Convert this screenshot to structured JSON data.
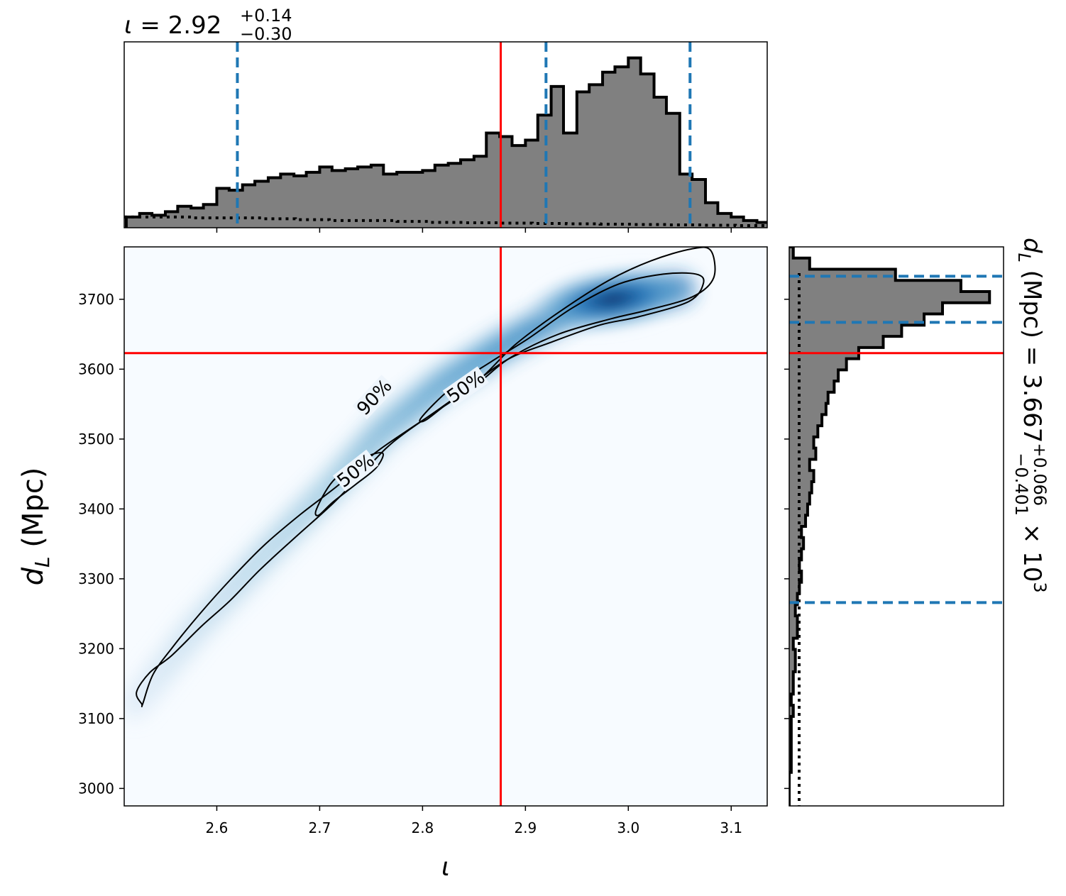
{
  "chart_data": {
    "type": "corner-plot",
    "panels": [
      {
        "name": "iota-marginal",
        "type": "histogram",
        "title": {
          "symbol": "ι",
          "equals": " = ",
          "median": "2.92",
          "plus": "+0.14",
          "minus": "−0.30"
        },
        "xlim": [
          2.51,
          3.135
        ],
        "bin_edges": [
          2.512,
          2.525,
          2.537,
          2.55,
          2.562,
          2.575,
          2.587,
          2.6,
          2.612,
          2.625,
          2.637,
          2.65,
          2.662,
          2.675,
          2.687,
          2.7,
          2.712,
          2.725,
          2.737,
          2.75,
          2.762,
          2.775,
          2.787,
          2.8,
          2.812,
          2.825,
          2.837,
          2.85,
          2.862,
          2.875,
          2.887,
          2.9,
          2.912,
          2.925,
          2.937,
          2.95,
          2.962,
          2.975,
          2.987,
          3.0,
          3.012,
          3.025,
          3.037,
          3.05,
          3.062,
          3.075,
          3.087,
          3.1,
          3.112,
          3.125,
          3.137
        ],
        "densities": [
          0.06,
          0.08,
          0.07,
          0.09,
          0.12,
          0.11,
          0.13,
          0.22,
          0.21,
          0.24,
          0.26,
          0.28,
          0.3,
          0.29,
          0.31,
          0.34,
          0.32,
          0.33,
          0.34,
          0.35,
          0.3,
          0.31,
          0.31,
          0.32,
          0.35,
          0.36,
          0.38,
          0.4,
          0.53,
          0.51,
          0.46,
          0.49,
          0.63,
          0.79,
          0.53,
          0.76,
          0.8,
          0.87,
          0.9,
          0.95,
          0.86,
          0.73,
          0.64,
          0.3,
          0.27,
          0.14,
          0.08,
          0.06,
          0.04,
          0.03
        ],
        "prior_dotted": [
          0.06,
          0.06,
          0.055,
          0.055,
          0.05,
          0.045,
          0.04,
          0.04,
          0.035,
          0.03,
          0.028,
          0.026,
          0.024,
          0.022,
          0.02,
          0.018,
          0.016,
          0.014,
          0.012
        ],
        "credible_lines": [
          2.62,
          2.92,
          3.06
        ],
        "injection": 2.876
      },
      {
        "name": "dL-marginal",
        "type": "histogram-horizontal",
        "label": {
          "name": "d",
          "subscript": "L",
          "unit": " (Mpc) = 3.667",
          "plus": "+0.066",
          "minus": "−0.401",
          "scale": " × 10",
          "exponent": "3"
        },
        "ylim": [
          2975,
          3775
        ],
        "bin_edges": [
          2975,
          2991,
          3007,
          3023,
          3039,
          3055,
          3071,
          3087,
          3103,
          3119,
          3135,
          3151,
          3167,
          3183,
          3199,
          3215,
          3231,
          3247,
          3263,
          3279,
          3295,
          3311,
          3327,
          3343,
          3359,
          3375,
          3391,
          3407,
          3423,
          3439,
          3455,
          3471,
          3487,
          3503,
          3519,
          3535,
          3551,
          3567,
          3583,
          3599,
          3615,
          3631,
          3647,
          3663,
          3679,
          3695,
          3711,
          3727,
          3743,
          3759,
          3775
        ],
        "densities": [
          0.0,
          0.0,
          0.0,
          0.01,
          0.01,
          0.01,
          0.01,
          0.01,
          0.02,
          0.01,
          0.02,
          0.02,
          0.03,
          0.03,
          0.02,
          0.04,
          0.04,
          0.03,
          0.04,
          0.05,
          0.06,
          0.05,
          0.06,
          0.07,
          0.06,
          0.08,
          0.09,
          0.1,
          0.11,
          0.12,
          0.1,
          0.13,
          0.12,
          0.14,
          0.16,
          0.18,
          0.19,
          0.22,
          0.24,
          0.28,
          0.34,
          0.46,
          0.55,
          0.66,
          0.75,
          0.98,
          0.84,
          0.52,
          0.1,
          0.02
        ],
        "credible_lines": [
          3266,
          3667,
          3733
        ],
        "injection": 3623
      },
      {
        "name": "joint-density",
        "type": "heatmap",
        "xlim": [
          2.51,
          3.135
        ],
        "ylim": [
          2975,
          3775
        ],
        "xlabel": "ι",
        "ylabel": {
          "name": "d",
          "subscript": "L",
          "unit": " (Mpc)"
        },
        "xticks": [
          "2.6",
          "2.7",
          "2.8",
          "2.9",
          "3.0",
          "3.1"
        ],
        "xtick_values": [
          2.6,
          2.7,
          2.8,
          2.9,
          3.0,
          3.1
        ],
        "yticks": [
          "3000",
          "3100",
          "3200",
          "3300",
          "3400",
          "3500",
          "3600",
          "3700"
        ],
        "ytick_values": [
          3000,
          3100,
          3200,
          3300,
          3400,
          3500,
          3600,
          3700
        ],
        "ridge": [
          [
            2.52,
            3120
          ],
          [
            2.58,
            3230
          ],
          [
            2.65,
            3340
          ],
          [
            2.71,
            3430
          ],
          [
            2.76,
            3510
          ],
          [
            2.82,
            3580
          ],
          [
            2.88,
            3635
          ],
          [
            2.95,
            3690
          ],
          [
            3.0,
            3705
          ],
          [
            3.05,
            3715
          ]
        ],
        "peak": [
          2.985,
          3700
        ],
        "contour_labels": [
          {
            "text": "90%",
            "x": 2.753,
            "y": 3560,
            "angle": -47
          },
          {
            "text": "50%",
            "x": 2.842,
            "y": 3575,
            "angle": -35
          },
          {
            "text": "50%",
            "x": 2.735,
            "y": 3455,
            "angle": -38
          }
        ],
        "contour_90": [
          [
            2.527,
            3121
          ],
          [
            2.522,
            3138
          ],
          [
            2.535,
            3166
          ],
          [
            2.556,
            3190
          ],
          [
            2.585,
            3232
          ],
          [
            2.613,
            3269
          ],
          [
            2.642,
            3313
          ],
          [
            2.676,
            3359
          ],
          [
            2.713,
            3408
          ],
          [
            2.742,
            3452
          ],
          [
            2.764,
            3486
          ],
          [
            2.784,
            3510
          ],
          [
            2.819,
            3546
          ],
          [
            2.856,
            3586
          ],
          [
            2.89,
            3635
          ],
          [
            2.933,
            3682
          ],
          [
            2.981,
            3727
          ],
          [
            3.022,
            3755
          ],
          [
            3.061,
            3772
          ],
          [
            3.08,
            3770
          ],
          [
            3.083,
            3731
          ],
          [
            3.063,
            3704
          ],
          [
            3.02,
            3685
          ],
          [
            2.983,
            3672
          ],
          [
            2.932,
            3650
          ],
          [
            2.886,
            3617
          ],
          [
            2.854,
            3580
          ],
          [
            2.822,
            3548
          ],
          [
            2.787,
            3514
          ],
          [
            2.752,
            3478
          ],
          [
            2.719,
            3435
          ],
          [
            2.682,
            3393
          ],
          [
            2.646,
            3348
          ],
          [
            2.614,
            3300
          ],
          [
            2.583,
            3249
          ],
          [
            2.557,
            3202
          ],
          [
            2.538,
            3163
          ],
          [
            2.528,
            3121
          ]
        ],
        "contour_50a": [
          [
            2.699,
            3391
          ],
          [
            2.713,
            3410
          ],
          [
            2.735,
            3435
          ],
          [
            2.755,
            3459
          ],
          [
            2.761,
            3480
          ],
          [
            2.74,
            3471
          ],
          [
            2.713,
            3440
          ],
          [
            2.697,
            3400
          ]
        ],
        "contour_50b": [
          [
            2.799,
            3531
          ],
          [
            2.828,
            3573
          ],
          [
            2.867,
            3611
          ],
          [
            2.903,
            3644
          ],
          [
            2.946,
            3688
          ],
          [
            2.991,
            3722
          ],
          [
            3.034,
            3736
          ],
          [
            3.066,
            3736
          ],
          [
            3.073,
            3723
          ],
          [
            3.059,
            3697
          ],
          [
            3.01,
            3675
          ],
          [
            2.972,
            3663
          ],
          [
            2.924,
            3638
          ],
          [
            2.884,
            3615
          ],
          [
            2.851,
            3581
          ],
          [
            2.825,
            3552
          ],
          [
            2.803,
            3527
          ]
        ],
        "injection": {
          "x": 2.876,
          "y": 3623
        }
      }
    ],
    "colors": {
      "fill": "#808080",
      "edge": "#000000",
      "credible": "#1f77b4",
      "injection": "#ff0000",
      "heat_low": "#f7fbff",
      "heat_high": "#08306b"
    }
  }
}
